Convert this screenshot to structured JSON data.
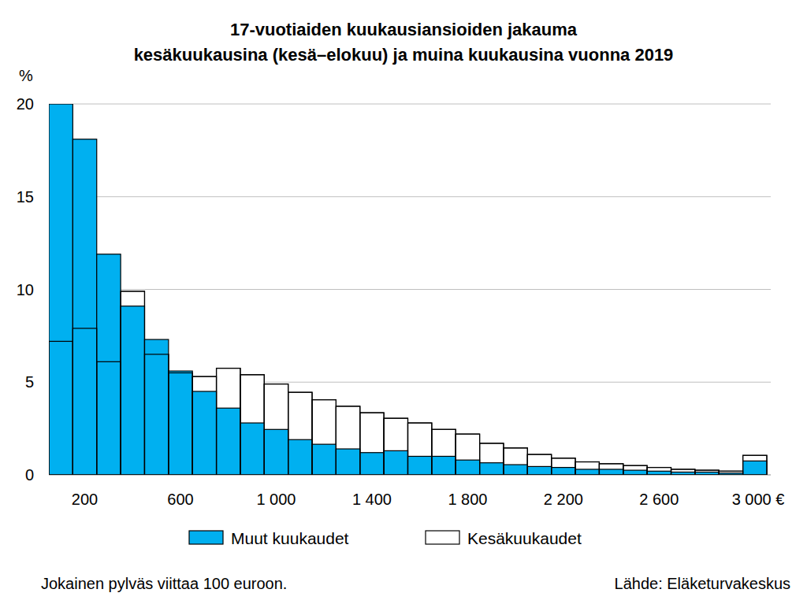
{
  "chart_data": {
    "type": "bar",
    "title": "17-vuotiaiden kuukausiansioiden jakauma",
    "subtitle": "kesäkuukausina (kesä–elokuu) ja muina kuukausina vuonna 2019",
    "ylabel": "%",
    "note": "Jokainen pylväs viittaa 100 euroon.",
    "source": "Lähde: Eläketurvakeskus",
    "categories": [
      null,
      "200",
      null,
      null,
      null,
      "600",
      null,
      null,
      null,
      "1 000",
      null,
      null,
      null,
      "1 400",
      null,
      null,
      null,
      "1 800",
      null,
      null,
      null,
      "2 200",
      null,
      null,
      null,
      "2 600",
      null,
      null,
      null,
      "3 000 €"
    ],
    "series": [
      {
        "name": "Muut kuukaudet",
        "color": "#00b0f0",
        "values": [
          20,
          18.1,
          11.9,
          9.1,
          7.3,
          5.6,
          4.5,
          3.6,
          2.8,
          2.45,
          1.9,
          1.65,
          1.4,
          1.2,
          1.3,
          1.0,
          1.0,
          0.8,
          0.65,
          0.55,
          0.45,
          0.4,
          0.3,
          0.3,
          0.25,
          0.2,
          0.15,
          0.15,
          0.1,
          0.75
        ]
      },
      {
        "name": "Kesäkuukaudet",
        "color": "#ffffff",
        "values": [
          7.2,
          7.9,
          6.1,
          9.9,
          6.5,
          5.5,
          5.3,
          5.75,
          5.4,
          4.9,
          4.45,
          4.05,
          3.7,
          3.35,
          3.05,
          2.8,
          2.45,
          2.2,
          1.7,
          1.45,
          1.1,
          0.9,
          0.7,
          0.6,
          0.5,
          0.4,
          0.3,
          0.25,
          0.2,
          1.05
        ]
      }
    ],
    "ylim": [
      0,
      20
    ],
    "yticks": [
      0,
      5,
      10,
      15,
      20
    ],
    "grid": true,
    "legend": "bottom"
  }
}
